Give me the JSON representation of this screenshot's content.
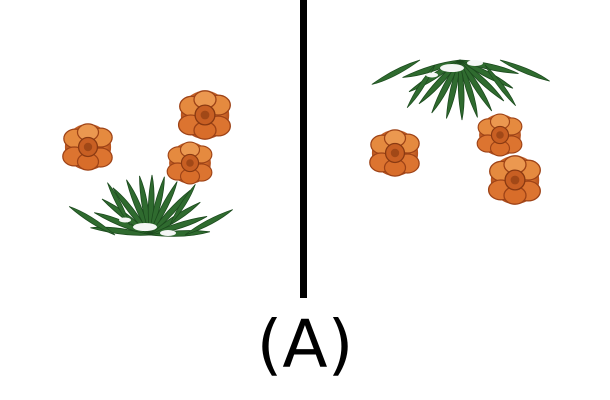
{
  "caption": "(A)",
  "colors": {
    "divider": "#000000",
    "petal": "#e07a2f",
    "petal_dark": "#a9481a",
    "leaf": "#2f6b2f",
    "leaf_dark": "#1c4a1e",
    "snow": "#f4f6f5"
  },
  "panels": [
    {
      "icon": "flower-plant-icon",
      "orientation": "upright"
    },
    {
      "icon": "flower-plant-icon",
      "orientation": "flipped"
    }
  ]
}
